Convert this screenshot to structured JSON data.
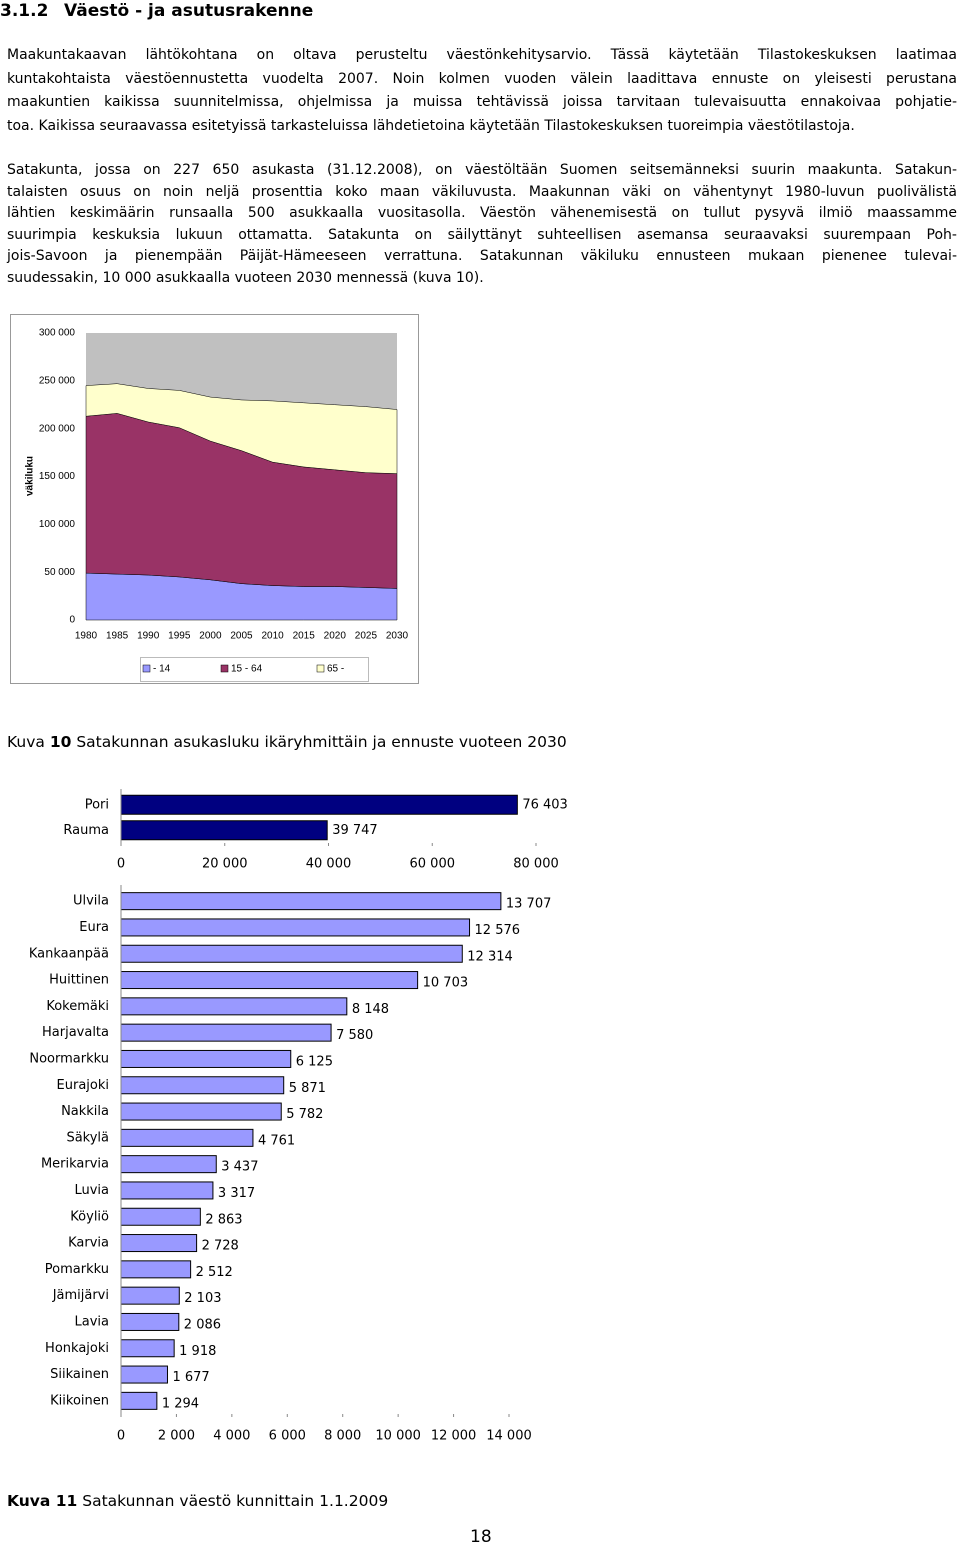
{
  "heading": {
    "number": "3.1.2",
    "title": "Väestö - ja asutusrakenne"
  },
  "paragraphs": [
    [
      "Maakuntakaavan lähtökohtana on oltava perusteltu väestönkehitysarvio. Tässä käytetään Tilastokeskuksen laatimaa",
      "kuntakohtaista väestöennustetta vuodelta 2007. Noin kolmen vuoden välein laadittava ennuste on yleisesti perustana",
      "maakuntien kaikissa suunnitelmissa, ohjelmissa ja muissa tehtävissä joissa tarvitaan tulevaisuutta ennakoivaa pohjatie-",
      "toa. Kaikissa seuraavassa esitetyissä tarkasteluissa lähdetietoina käytetään Tilastokeskuksen tuoreimpia väestötilastoja."
    ],
    [
      "Satakunta, jossa on 227 650 asukasta (31.12.2008), on väestöltään Suomen seitsemänneksi suurin maakunta. Satakun-",
      "talaisten osuus on noin neljä prosenttia koko maan väkiluvusta. Maakunnan väki on vähentynyt 1980-luvun puolivälistä",
      "lähtien keskimäärin runsaalla 500 asukkaalla vuositasolla. Väestön vähenemisestä on tullut pysyvä ilmiö maassamme",
      "suurimpia keskuksia lukuun ottamatta. Satakunta on säilyttänyt suhteellisen asemansa seuraavaksi suurempaan Poh-",
      "jois-Savoon ja pienempään Päijät-Hämeeseen verrattuna. Satakunnan väkiluku ennusteen mukaan pienenee tulevai-",
      "suudessakin, 10 000 asukkaalla vuoteen 2030 mennessä (kuva 10)."
    ]
  ],
  "chart_data": [
    {
      "type": "stacked-area",
      "y_label": "väkiluku",
      "x": [
        1980,
        1985,
        1990,
        1995,
        2000,
        2005,
        2010,
        2015,
        2020,
        2025,
        2030
      ],
      "xlim": [
        1980,
        2030
      ],
      "xticks": [
        1980,
        1985,
        1990,
        1995,
        2000,
        2005,
        2010,
        2015,
        2020,
        2025,
        2030
      ],
      "ylim": [
        0,
        300000
      ],
      "yticks": [
        0,
        {
          "value": 50000,
          "label": "50 000"
        },
        {
          "value": 100000,
          "label": "100 000"
        },
        {
          "value": 150000,
          "label": "150 000"
        },
        {
          "value": 200000,
          "label": "200 000"
        },
        {
          "value": 250000,
          "label": "250 000"
        },
        {
          "value": 300000,
          "label": "300 000"
        }
      ],
      "series": [
        {
          "name": "- 14",
          "color": "#9999ff",
          "values": [
            49000,
            48000,
            47000,
            45000,
            42000,
            38000,
            36000,
            35000,
            35000,
            34000,
            33000
          ]
        },
        {
          "name": "15 - 64",
          "color": "#993366",
          "values": [
            164000,
            168000,
            160000,
            156000,
            145000,
            139000,
            129000,
            125000,
            122000,
            120000,
            120000
          ]
        },
        {
          "name": "65 -",
          "color": "#ffffcc",
          "values": [
            32000,
            31000,
            35000,
            39000,
            46000,
            53000,
            64000,
            67000,
            68000,
            69000,
            67000
          ]
        }
      ]
    },
    {
      "type": "bar",
      "orientation": "horizontal",
      "color": "#000080",
      "categories": [
        "Pori",
        "Rauma"
      ],
      "values": [
        76403,
        39747
      ],
      "value_labels": [
        "76 403",
        "39 747"
      ],
      "xlim": [
        0,
        80000
      ],
      "xticks": [
        0,
        {
          "value": 20000,
          "label": "20 000"
        },
        {
          "value": 40000,
          "label": "40 000"
        },
        {
          "value": 60000,
          "label": "60 000"
        },
        {
          "value": 80000,
          "label": "80 000"
        }
      ]
    },
    {
      "type": "bar",
      "orientation": "horizontal",
      "color": "#9999ff",
      "categories": [
        "Ulvila",
        "Eura",
        "Kankaanpää",
        "Huittinen",
        "Kokemäki",
        "Harjavalta",
        "Noormarkku",
        "Eurajoki",
        "Nakkila",
        "Säkylä",
        "Merikarvia",
        "Luvia",
        "Köyliö",
        "Karvia",
        "Pomarkku",
        "Jämijärvi",
        "Lavia",
        "Honkajoki",
        "Siikainen",
        "Kiikoinen"
      ],
      "values": [
        13707,
        12576,
        12314,
        10703,
        8148,
        7580,
        6125,
        5871,
        5782,
        4761,
        3437,
        3317,
        2863,
        2728,
        2512,
        2103,
        2086,
        1918,
        1677,
        1294
      ],
      "value_labels": [
        "13 707",
        "12 576",
        "12 314",
        "10 703",
        "8 148",
        "7 580",
        "6 125",
        "5 871",
        "5 782",
        "4 761",
        "3 437",
        "3 317",
        "2 863",
        "2 728",
        "2 512",
        "2 103",
        "2 086",
        "1 918",
        "1 677",
        "1 294"
      ],
      "xlim": [
        0,
        14000
      ],
      "xticks": [
        0,
        {
          "value": 2000,
          "label": "2 000"
        },
        {
          "value": 4000,
          "label": "4 000"
        },
        {
          "value": 6000,
          "label": "6 000"
        },
        {
          "value": 8000,
          "label": "8 000"
        },
        {
          "value": 10000,
          "label": "10 000"
        },
        {
          "value": 12000,
          "label": "12 000"
        },
        {
          "value": 14000,
          "label": "14 000"
        }
      ]
    }
  ],
  "captions": [
    {
      "prefix": "Kuva",
      "number": "10",
      "text": "Satakunnan asukasluku ikäryhmittäin ja ennuste vuoteen 2030"
    },
    {
      "prefix": "Kuva",
      "number": "11",
      "text": "Satakunnan väestö kunnittain 1.1.2009"
    }
  ],
  "page_number": "18"
}
